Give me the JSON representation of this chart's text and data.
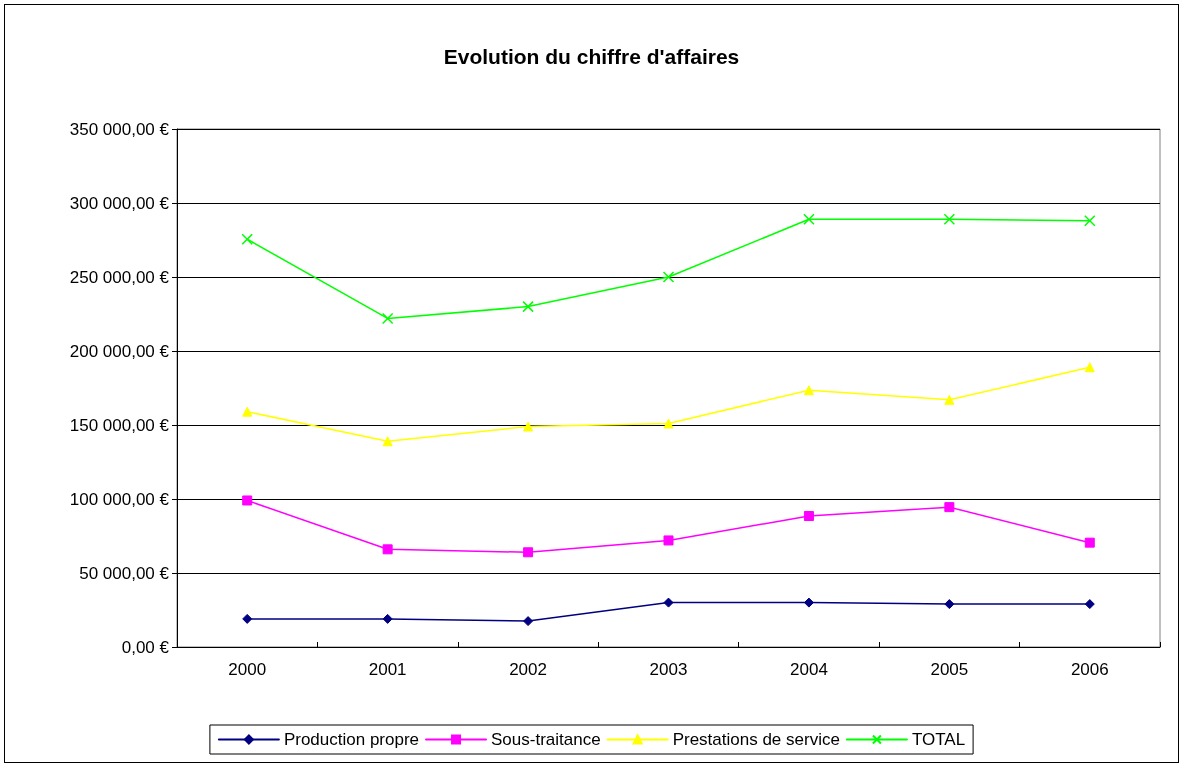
{
  "chart_data": {
    "type": "line",
    "title": "Evolution du chiffre d'affaires",
    "categories": [
      "2000",
      "2001",
      "2002",
      "2003",
      "2004",
      "2005",
      "2006"
    ],
    "series": [
      {
        "name": "Production propre",
        "color": "#000080",
        "marker": "diamond",
        "values": [
          19000,
          19000,
          17500,
          30000,
          30000,
          29000,
          29000
        ]
      },
      {
        "name": "Sous-traitance",
        "color": "#ff00ff",
        "marker": "square",
        "values": [
          99000,
          66000,
          64000,
          72000,
          88500,
          94500,
          70500
        ]
      },
      {
        "name": "Prestations de service",
        "color": "#ffff00",
        "marker": "triangle",
        "values": [
          159000,
          139000,
          149000,
          151000,
          173500,
          167000,
          189000
        ]
      },
      {
        "name": "TOTAL",
        "color": "#00ff00",
        "marker": "cross",
        "values": [
          275500,
          222000,
          230000,
          250000,
          289000,
          289000,
          288000
        ]
      }
    ],
    "ylim": [
      0,
      350000
    ],
    "yticks": [
      {
        "value": 0,
        "label": "0,00 €"
      },
      {
        "value": 50000,
        "label": "50 000,00 €"
      },
      {
        "value": 100000,
        "label": "100 000,00 €"
      },
      {
        "value": 150000,
        "label": "150 000,00 €"
      },
      {
        "value": 200000,
        "label": "200 000,00 €"
      },
      {
        "value": 250000,
        "label": "250 000,00 €"
      },
      {
        "value": 300000,
        "label": "300 000,00 €"
      },
      {
        "value": 350000,
        "label": "350 000,00 €"
      }
    ],
    "grid": "y",
    "legend": "bottom",
    "line_style": "solid"
  }
}
